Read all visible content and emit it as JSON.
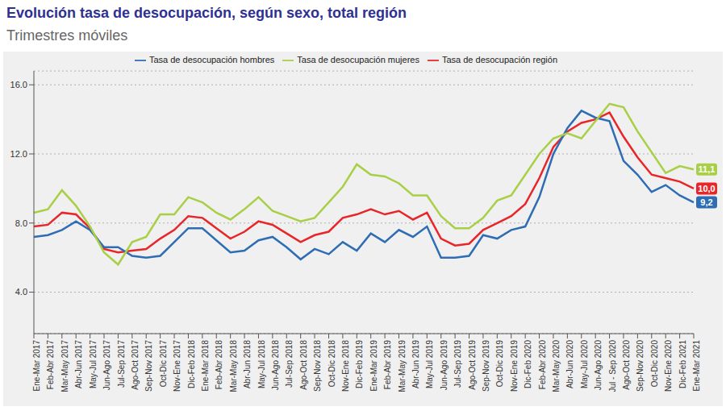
{
  "chart_data": {
    "type": "line",
    "title": "Evolución tasa de desocupación, según sexo, total región",
    "subtitle": "Trimestres móviles",
    "categories": [
      "Ene-Mar 2017",
      "Feb-Abr 2017",
      "Mar-May 2017",
      "Abr-Jun 2017",
      "May-Jul 2017",
      "Jun-Ago 2017",
      "Jul-Sep 2017",
      "Ago-Oct 2017",
      "Sep-Nov 2017",
      "Oct-Dic 2017",
      "Nov-Ene 2017",
      "Dic-Feb 2018",
      "Ene-Mar 2018",
      "Feb-Abr 2018",
      "Mar-May 2018",
      "Abr-Jun 2018",
      "May-Jul 2018",
      "Jun-Ago 2018",
      "Jul-Sep 2018",
      "Ago-Oct 2018",
      "Sep-Nov 2018",
      "Oct-Dic 2018",
      "Nov-Ene 2018",
      "Dic-Feb 2019",
      "Ene-Mar 2019",
      "Feb-Abr 2019",
      "Mar-May 2019",
      "Abr-Jun 2019",
      "May-Jul 2019",
      "Jun-Ago 2019",
      "Jul-Sep 2019",
      "Ago-Oct 2019",
      "Sep-Nov 2019",
      "Oct-Dic 2019",
      "Nov-Ene 2019",
      "Dic-Feb 2020",
      "Feb-Abr 2020",
      "Mar-May 2020",
      "Abr-Jun 2020",
      "May-Jul 2020",
      "Jun-Ago 2020",
      "Jul - Sep 2020",
      "Ago-Oct 2020",
      "Sep-Nov 2020",
      "Oct-Dic 2020",
      "Nov-Ene 2020",
      "Dic-Feb 2021",
      "Ene-Mar 2021"
    ],
    "series": [
      {
        "name": "Tasa de desocupación región",
        "color": "#e8262a",
        "values": [
          7.8,
          7.9,
          8.6,
          8.5,
          7.7,
          6.5,
          6.3,
          6.4,
          6.5,
          7.1,
          7.6,
          8.4,
          8.3,
          7.7,
          7.1,
          7.5,
          8.1,
          7.9,
          7.4,
          6.9,
          7.3,
          7.5,
          8.3,
          8.5,
          8.8,
          8.5,
          8.7,
          8.2,
          8.6,
          7.1,
          6.7,
          6.8,
          7.6,
          8.0,
          8.4,
          9.1,
          10.6,
          12.4,
          13.3,
          13.8,
          14.0,
          14.4,
          13.0,
          11.8,
          10.8,
          10.6,
          10.4,
          10.0
        ],
        "value_labels": [
          null,
          null,
          null,
          null,
          null,
          null,
          null,
          null,
          null,
          null,
          null,
          null,
          null,
          null,
          null,
          null,
          null,
          null,
          null,
          null,
          null,
          null,
          null,
          null,
          null,
          null,
          null,
          null,
          null,
          null,
          null,
          null,
          null,
          null,
          null,
          null,
          null,
          null,
          null,
          null,
          null,
          null,
          null,
          null,
          null,
          null,
          null,
          "10,0"
        ]
      },
      {
        "name": "Tasa de desocupación hombres",
        "color": "#2e6db4",
        "values": [
          7.2,
          7.3,
          7.6,
          8.1,
          7.6,
          6.6,
          6.6,
          6.1,
          6.0,
          6.1,
          6.9,
          7.7,
          7.7,
          7.0,
          6.3,
          6.4,
          7.0,
          7.2,
          6.6,
          5.9,
          6.5,
          6.2,
          6.9,
          6.4,
          7.4,
          6.9,
          7.6,
          7.2,
          7.8,
          6.0,
          6.0,
          6.1,
          7.3,
          7.1,
          7.6,
          7.8,
          9.5,
          12.0,
          13.5,
          14.5,
          14.1,
          13.9,
          11.6,
          10.8,
          9.8,
          10.2,
          9.6,
          9.2
        ],
        "value_labels": [
          null,
          null,
          null,
          null,
          null,
          null,
          null,
          null,
          null,
          null,
          null,
          null,
          null,
          null,
          null,
          null,
          null,
          null,
          null,
          null,
          null,
          null,
          null,
          null,
          null,
          null,
          null,
          null,
          null,
          null,
          null,
          null,
          null,
          null,
          null,
          null,
          null,
          null,
          null,
          null,
          null,
          null,
          null,
          null,
          null,
          null,
          null,
          "9,2"
        ]
      },
      {
        "name": "Tasa de desocupación mujeres",
        "color": "#a8cf45",
        "values": [
          8.6,
          8.8,
          9.9,
          9.0,
          7.8,
          6.3,
          5.6,
          6.9,
          7.2,
          8.5,
          8.5,
          9.5,
          9.2,
          8.6,
          8.2,
          8.8,
          9.5,
          8.7,
          8.4,
          8.1,
          8.3,
          9.2,
          10.1,
          11.4,
          10.8,
          10.7,
          10.3,
          9.6,
          9.6,
          8.4,
          7.7,
          7.7,
          8.3,
          9.3,
          9.6,
          10.8,
          12.0,
          12.9,
          13.2,
          12.9,
          13.9,
          14.9,
          14.7,
          13.3,
          12.1,
          10.9,
          11.3,
          11.1
        ],
        "value_labels": [
          null,
          null,
          null,
          null,
          null,
          null,
          null,
          null,
          null,
          null,
          null,
          null,
          null,
          null,
          null,
          null,
          null,
          null,
          null,
          null,
          null,
          null,
          null,
          null,
          null,
          null,
          null,
          null,
          null,
          null,
          null,
          null,
          null,
          null,
          null,
          null,
          null,
          null,
          null,
          null,
          null,
          null,
          null,
          null,
          null,
          null,
          null,
          "11,1"
        ]
      }
    ],
    "ylim": [
      1.6,
      16.8
    ],
    "yticks": [
      {
        "value": 4,
        "label": "4.0"
      },
      {
        "value": 8,
        "label": "8.0"
      },
      {
        "value": 12,
        "label": "12.0"
      },
      {
        "value": 16,
        "label": "16.0"
      }
    ],
    "grid": true,
    "legend": "top"
  }
}
